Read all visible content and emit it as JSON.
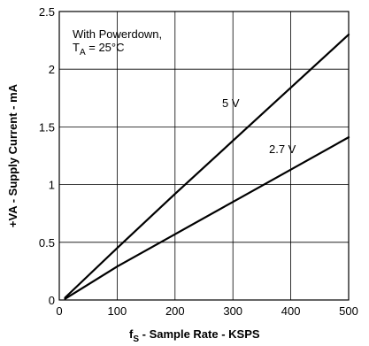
{
  "chart_data": {
    "type": "line",
    "xlabel_prefix": "f",
    "xlabel_sub": "S",
    "xlabel_rest": " - Sample Rate - KSPS",
    "ylabel": "+VA - Supply Current - mA",
    "xlim": [
      0,
      500
    ],
    "ylim": [
      0,
      2.5
    ],
    "xticks": [
      "0",
      "100",
      "200",
      "300",
      "400",
      "500"
    ],
    "yticks": [
      "0",
      "0.5",
      "1",
      "1.5",
      "2",
      "2.5"
    ],
    "grid": true,
    "annotation_line1": "With Powerdown,",
    "annotation_line2_prefix": "T",
    "annotation_line2_sub": "A",
    "annotation_line2_rest": " = 25°C",
    "series": [
      {
        "name": "5 V",
        "x": [
          10,
          100,
          200,
          300,
          400,
          500
        ],
        "y": [
          0.02,
          0.45,
          0.92,
          1.38,
          1.84,
          2.3
        ]
      },
      {
        "name": "2.7 V",
        "x": [
          10,
          100,
          200,
          300,
          400,
          500
        ],
        "y": [
          0.01,
          0.29,
          0.57,
          0.85,
          1.13,
          1.41
        ]
      }
    ]
  }
}
